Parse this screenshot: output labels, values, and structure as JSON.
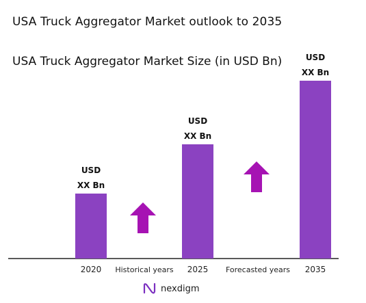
{
  "title": "USA Truck Aggregator Market outlook to 2035",
  "subtitle": "USA Truck Aggregator Market Size (in USD Bn)",
  "colors": {
    "bar": "#8b42c1",
    "arrow": "#a613b3",
    "axis": "#222222"
  },
  "chart_data": {
    "type": "bar",
    "categories": [
      "2020",
      "2025",
      "2035"
    ],
    "values": [
      95,
      167,
      260
    ],
    "data_labels": [
      [
        "USD",
        "XX Bn"
      ],
      [
        "USD",
        "XX Bn"
      ],
      [
        "USD",
        "XX Bn"
      ]
    ],
    "period_labels": [
      "Historical years",
      "Forecasted years"
    ],
    "ylim": [
      0,
      300
    ],
    "grid": false,
    "legend": "none"
  },
  "logo": {
    "text": "nexdigm",
    "icon": "nexdigm-logo-icon"
  }
}
